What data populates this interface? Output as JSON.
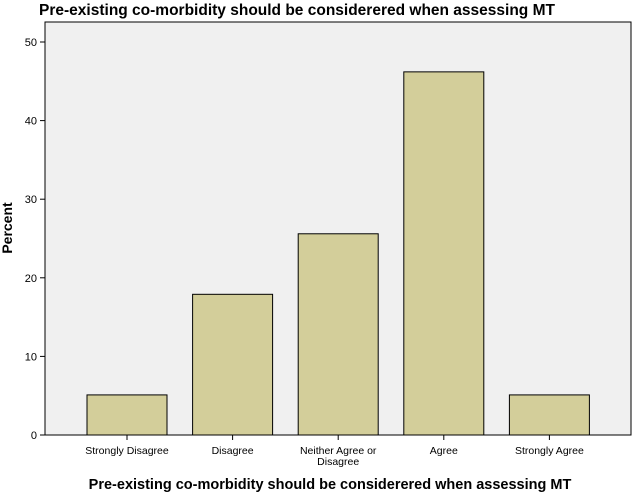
{
  "chart_data": {
    "type": "bar",
    "title": "Pre-existing co-morbidity should be considerered when assessing MT",
    "xlabel": "Pre-existing co-morbidity should be considerered when assessing MT",
    "ylabel": "Percent",
    "categories": [
      "Strongly Disagree",
      "Disagree",
      "Neither Agree or Disagree",
      "Agree",
      "Strongly Agree"
    ],
    "values": [
      5.1,
      17.9,
      25.6,
      46.2,
      5.1
    ],
    "yticks": [
      0,
      10,
      20,
      30,
      40,
      50
    ],
    "ylim": [
      0,
      50
    ],
    "grid": false,
    "legend": "none",
    "bar_color": "#d3ce9a",
    "bar_edge_color": "#000000",
    "plot_background": "#f0f0f0"
  }
}
